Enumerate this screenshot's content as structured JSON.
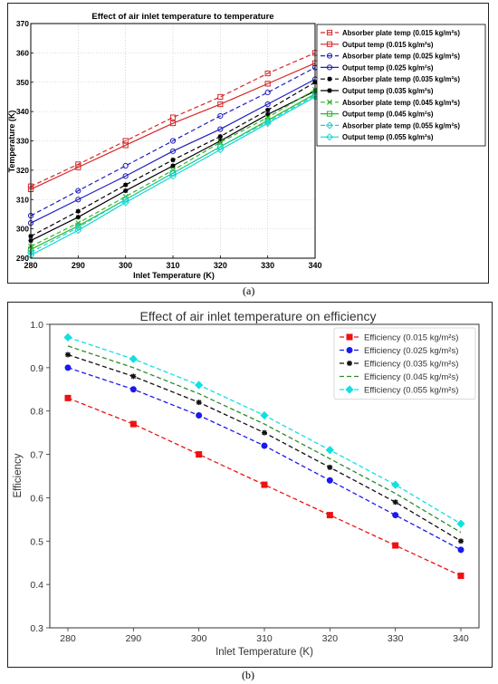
{
  "captions": {
    "a": "(a)",
    "b": "(b)"
  },
  "chart_data": [
    {
      "type": "line",
      "title": "Effect of air inlet temperature to  temperature",
      "xlabel": "Inlet Temperature (K)",
      "ylabel": "Temperature (K)",
      "xlim": [
        280,
        340
      ],
      "ylim": [
        290,
        370
      ],
      "x": [
        280,
        290,
        300,
        310,
        320,
        330,
        340
      ],
      "xticks": [
        280,
        290,
        300,
        310,
        320,
        330,
        340
      ],
      "yticks": [
        290,
        300,
        310,
        320,
        330,
        340,
        350,
        360,
        370
      ],
      "grid": true,
      "legend_position": "top-right",
      "series": [
        {
          "name": "Absorber plate temp (0.015 kg/m²s)",
          "color": "#d62728",
          "dash": "dashed",
          "marker": "square",
          "values": [
            314.5,
            322,
            330,
            338,
            345,
            353,
            360
          ]
        },
        {
          "name": "Output temp (0.015 kg/m²s)",
          "color": "#d62728",
          "dash": "solid",
          "marker": "square",
          "values": [
            313.5,
            321,
            328.5,
            336,
            342.5,
            349.5,
            356.5
          ]
        },
        {
          "name": "Absorber plate temp (0.025 kg/m²s)",
          "color": "#1f1fbf",
          "dash": "dashed",
          "marker": "circle",
          "values": [
            304.5,
            313,
            321.5,
            330,
            338.5,
            346.5,
            355
          ]
        },
        {
          "name": "Output temp (0.025 kg/m²s)",
          "color": "#1f1fbf",
          "dash": "solid",
          "marker": "circle",
          "values": [
            302,
            310,
            318,
            326.5,
            334,
            342.5,
            351
          ]
        },
        {
          "name": "Absorber plate temp (0.035 kg/m²s)",
          "color": "#000000",
          "dash": "dashed",
          "marker": "star",
          "values": [
            297.5,
            306,
            315,
            323.5,
            331.5,
            340.5,
            350
          ]
        },
        {
          "name": "Output temp (0.035 kg/m²s)",
          "color": "#000000",
          "dash": "solid",
          "marker": "star",
          "values": [
            296,
            304,
            313,
            321.5,
            330,
            339,
            347
          ]
        },
        {
          "name": "Absorber plate temp (0.045 kg/m²s)",
          "color": "#2db82d",
          "dash": "dashed",
          "marker": "x",
          "values": [
            294,
            302,
            311,
            320,
            329.5,
            338,
            347.5
          ]
        },
        {
          "name": "Output temp (0.045 kg/m²s)",
          "color": "#2db82d",
          "dash": "solid",
          "marker": "square",
          "values": [
            293,
            301,
            310,
            319,
            328,
            337,
            346
          ]
        },
        {
          "name": "Absorber plate temp (0.055 kg/m²s)",
          "color": "#17d4d4",
          "dash": "dashed",
          "marker": "diamond",
          "values": [
            292,
            300.5,
            310,
            319,
            328,
            336.5,
            345.5
          ]
        },
        {
          "name": "Output temp (0.055 kg/m²s)",
          "color": "#17d4d4",
          "dash": "solid",
          "marker": "diamond",
          "values": [
            291,
            299.5,
            309,
            318,
            327,
            336,
            345
          ]
        }
      ]
    },
    {
      "type": "line",
      "title": "Effect of air inlet temperature on efficiency",
      "xlabel": "Inlet Temperature (K)",
      "ylabel": "Efficiency",
      "xlim": [
        280,
        340
      ],
      "ylim": [
        0.3,
        1.0
      ],
      "x": [
        280,
        290,
        300,
        310,
        320,
        330,
        340
      ],
      "xticks": [
        280,
        290,
        300,
        310,
        320,
        330,
        340
      ],
      "yticks": [
        "0.3",
        "0.4",
        "0.5",
        "0.6",
        "0.7",
        "0.8",
        "0.9",
        "1.0"
      ],
      "grid": false,
      "legend_position": "top-right",
      "series": [
        {
          "name": "Efficiency (0.015 kg/m²s)",
          "color": "#ee1111",
          "dash": "dashed",
          "marker": "square",
          "values": [
            0.83,
            0.77,
            0.7,
            0.63,
            0.56,
            0.49,
            0.42
          ]
        },
        {
          "name": "Efficiency (0.025 kg/m²s)",
          "color": "#1a1aee",
          "dash": "dashed",
          "marker": "circle",
          "values": [
            0.9,
            0.85,
            0.79,
            0.72,
            0.64,
            0.56,
            0.48
          ]
        },
        {
          "name": "Efficiency (0.035 kg/m²s)",
          "color": "#111111",
          "dash": "dashed",
          "marker": "star",
          "values": [
            0.93,
            0.88,
            0.82,
            0.75,
            0.67,
            0.59,
            0.5
          ]
        },
        {
          "name": "Efficiency (0.045 kg/m²s)",
          "color": "#2e8b2e",
          "dash": "dashed",
          "marker": "none",
          "values": [
            0.95,
            0.9,
            0.84,
            0.77,
            0.69,
            0.61,
            0.52
          ]
        },
        {
          "name": "Efficiency (0.055 kg/m²s)",
          "color": "#11e0e0",
          "dash": "dashed",
          "marker": "diamond",
          "values": [
            0.97,
            0.92,
            0.86,
            0.79,
            0.71,
            0.63,
            0.54
          ]
        }
      ]
    }
  ]
}
